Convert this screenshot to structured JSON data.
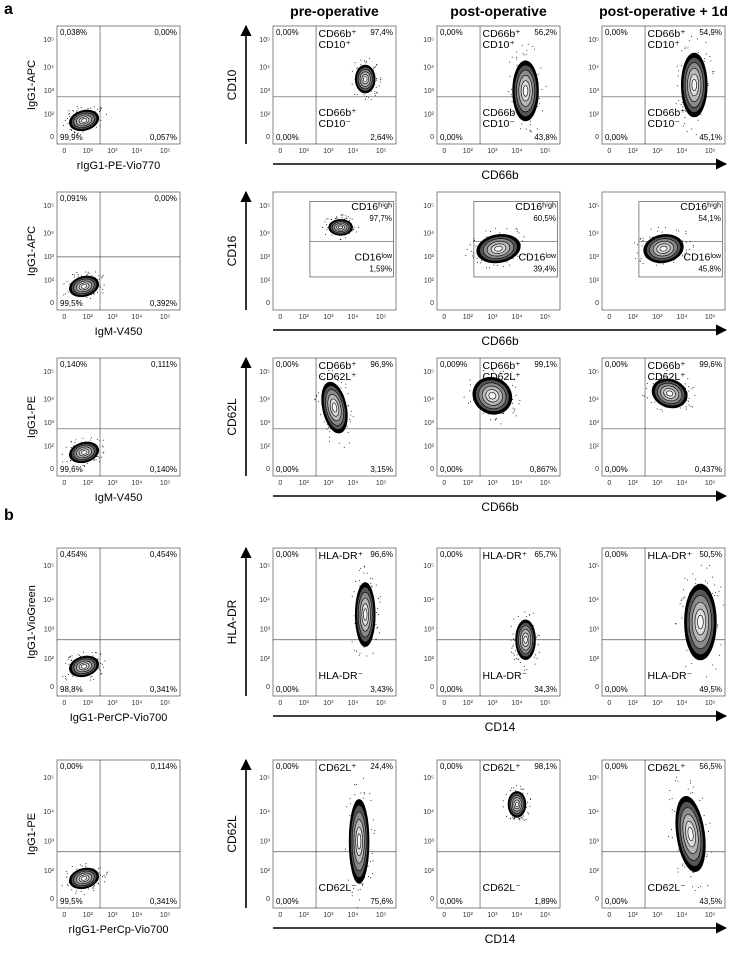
{
  "panels": [
    {
      "label": "a",
      "rows": [
        {
          "control": {
            "y_label": "IgG1-APC",
            "x_label": "rIgG1-PE-Vio770",
            "tl": "0,038%",
            "tr": "0,00%",
            "bl": "99,9%",
            "br": "0,057%"
          },
          "y_label": "CD10",
          "x_label": "CD66b",
          "plots": [
            {
              "tl": "0,00%",
              "tr": "97,4%",
              "bl": "0,00%",
              "br": "2,64%",
              "upper": {
                "lines": [
                  "CD66b⁺",
                  "CD10⁺"
                ]
              },
              "lower": {
                "lines": [
                  "CD66b⁺",
                  "CD10⁻"
                ]
              }
            },
            {
              "tl": "0,00%",
              "tr": "56,2%",
              "bl": "0,00%",
              "br": "43,8%",
              "upper": {
                "lines": [
                  "CD66b⁺",
                  "CD10⁺"
                ]
              },
              "lower": {
                "lines": [
                  "CD66b⁺",
                  "CD10⁻"
                ]
              }
            },
            {
              "tl": "0,00%",
              "tr": "54,9%",
              "bl": "0,00%",
              "br": "45,1%",
              "upper": {
                "lines": [
                  "CD66b⁺",
                  "CD10⁺"
                ]
              },
              "lower": {
                "lines": [
                  "CD66b⁺",
                  "CD10⁻"
                ]
              }
            }
          ]
        },
        {
          "control": {
            "y_label": "IgG1-APC",
            "x_label": "IgM-V450",
            "tl": "0,091%",
            "tr": "0,00%",
            "bl": "99,5%",
            "br": "0,392%"
          },
          "y_label": "CD16",
          "x_label": "CD66b",
          "plots": [
            {
              "upper": {
                "lines": [
                  "CD16ʰⁱᵍʰ"
                ],
                "pct": "97,7%"
              },
              "lower": {
                "lines": [
                  "CD16ˡᵒʷ"
                ],
                "pct": "1,59%"
              }
            },
            {
              "upper": {
                "lines": [
                  "CD16ʰⁱᵍʰ"
                ],
                "pct": "60,5%"
              },
              "lower": {
                "lines": [
                  "CD16ˡᵒʷ"
                ],
                "pct": "39,4%"
              }
            },
            {
              "upper": {
                "lines": [
                  "CD16ʰⁱᵍʰ"
                ],
                "pct": "54,1%"
              },
              "lower": {
                "lines": [
                  "CD16ˡᵒʷ"
                ],
                "pct": "45,8%"
              }
            }
          ]
        },
        {
          "control": {
            "y_label": "IgG1-PE",
            "x_label": "IgM-V450",
            "tl": "0,140%",
            "tr": "0,111%",
            "bl": "99,6%",
            "br": "0,140%"
          },
          "y_label": "CD62L",
          "x_label": "CD66b",
          "plots": [
            {
              "tl": "0,00%",
              "tr": "96,9%",
              "bl": "0,00%",
              "br": "3,15%",
              "upper": {
                "lines": [
                  "CD66b⁺",
                  "CD62L⁺"
                ]
              }
            },
            {
              "tl": "0,009%",
              "tr": "99,1%",
              "bl": "0,00%",
              "br": "0,867%",
              "upper": {
                "lines": [
                  "CD66b⁺",
                  "CD62L⁺"
                ]
              }
            },
            {
              "tl": "0,00%",
              "tr": "99,6%",
              "bl": "0,00%",
              "br": "0,437%",
              "upper": {
                "lines": [
                  "CD66b⁺",
                  "CD62L⁺"
                ]
              }
            }
          ]
        }
      ]
    },
    {
      "label": "b",
      "rows": [
        {
          "control": {
            "y_label": "IgG1-VioGreen",
            "x_label": "IgG1-PerCP-Vio700",
            "tl": "0,454%",
            "tr": "0,454%",
            "bl": "98,8%",
            "br": "0,341%"
          },
          "y_label": "HLA-DR",
          "x_label": "CD14",
          "plots": [
            {
              "tl": "0,00%",
              "tr": "96,6%",
              "bl": "0,00%",
              "br": "3,43%",
              "upper": {
                "lines": [
                  "HLA-DR⁺"
                ]
              },
              "lower": {
                "lines": [
                  "HLA-DR⁻"
                ]
              }
            },
            {
              "tl": "0,00%",
              "tr": "65,7%",
              "bl": "0,00%",
              "br": "34,3%",
              "upper": {
                "lines": [
                  "HLA-DR⁺"
                ]
              },
              "lower": {
                "lines": [
                  "HLA-DR⁻"
                ]
              }
            },
            {
              "tl": "0,00%",
              "tr": "50,5%",
              "bl": "0,00%",
              "br": "49,5%",
              "upper": {
                "lines": [
                  "HLA-DR⁺"
                ]
              },
              "lower": {
                "lines": [
                  "HLA-DR⁻"
                ]
              }
            }
          ]
        },
        {
          "control": {
            "y_label": "IgG1-PE",
            "x_label": "rIgG1-PerCp-Vio700",
            "tl": "0,00%",
            "tr": "0,114%",
            "bl": "99,5%",
            "br": "0,341%"
          },
          "y_label": "CD62L",
          "x_label": "CD14",
          "plots": [
            {
              "tl": "0,00%",
              "tr": "24,4%",
              "bl": "0,00%",
              "br": "75,6%",
              "upper": {
                "lines": [
                  "CD62L⁺"
                ]
              },
              "lower": {
                "lines": [
                  "CD62L⁻"
                ]
              }
            },
            {
              "tl": "0,00%",
              "tr": "98,1%",
              "bl": "0,00%",
              "br": "1,89%",
              "upper": {
                "lines": [
                  "CD62L⁺"
                ]
              },
              "lower": {
                "lines": [
                  "CD62L⁻"
                ]
              }
            },
            {
              "tl": "0,00%",
              "tr": "56,5%",
              "bl": "0,00%",
              "br": "43,5%",
              "upper": {
                "lines": [
                  "CD62L⁺"
                ]
              },
              "lower": {
                "lines": [
                  "CD62L⁻"
                ]
              }
            }
          ]
        }
      ]
    }
  ],
  "column_headers": [
    "pre-operative",
    "post-operative",
    "post-operative + 1d"
  ],
  "ticks": [
    "0",
    "10²",
    "10³",
    "10⁴",
    "10⁵"
  ]
}
